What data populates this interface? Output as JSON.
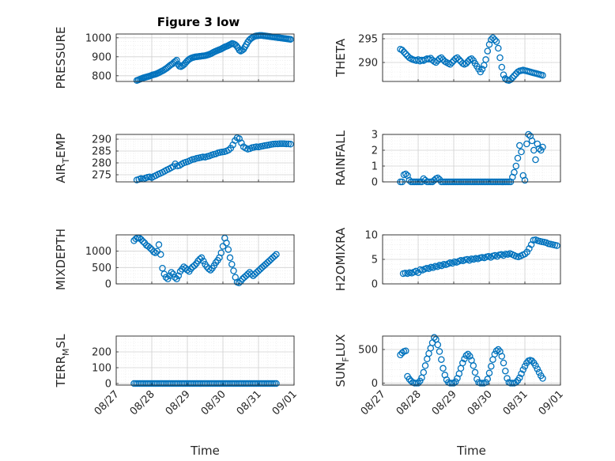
{
  "figure": {
    "title": "Figure 3 low",
    "xlabel": "Time",
    "x_ticks": [
      "08/27",
      "08/28",
      "08/29",
      "08/30",
      "08/31",
      "09/01"
    ],
    "marker_color": "#0072BD"
  },
  "chart_data": [
    {
      "type": "scatter",
      "ylabel": "PRESSURE",
      "ylim": [
        770,
        1020
      ],
      "yticks": [
        800,
        900,
        1000
      ],
      "x": [
        0.58,
        0.62,
        0.66,
        0.7,
        0.74,
        0.78,
        0.82,
        0.86,
        0.9,
        0.94,
        0.98,
        1.02,
        1.06,
        1.1,
        1.14,
        1.18,
        1.22,
        1.26,
        1.3,
        1.34,
        1.38,
        1.42,
        1.46,
        1.5,
        1.54,
        1.58,
        1.62,
        1.66,
        1.7,
        1.74,
        1.78,
        1.82,
        1.86,
        1.9,
        1.94,
        1.98,
        2.02,
        2.06,
        2.1,
        2.14,
        2.18,
        2.22,
        2.26,
        2.3,
        2.34,
        2.38,
        2.42,
        2.46,
        2.5,
        2.54,
        2.58,
        2.62,
        2.66,
        2.7,
        2.74,
        2.78,
        2.82,
        2.86,
        2.9,
        2.94,
        2.98,
        3.02,
        3.06,
        3.1,
        3.14,
        3.18,
        3.22,
        3.26,
        3.3,
        3.34,
        3.38,
        3.42,
        3.46,
        3.5,
        3.54,
        3.58,
        3.62,
        3.66,
        3.7,
        3.74,
        3.78,
        3.82,
        3.86,
        3.9,
        3.94,
        3.98,
        4.02,
        4.06,
        4.1,
        4.14,
        4.18,
        4.22,
        4.26,
        4.3,
        4.34,
        4.38,
        4.42,
        4.46,
        4.5,
        4.54,
        4.58,
        4.62,
        4.66,
        4.7,
        4.74,
        4.78,
        4.82,
        4.86,
        4.9
      ],
      "y": [
        775,
        778,
        781,
        784,
        787,
        790,
        792,
        794,
        796,
        798,
        801,
        804,
        806,
        808,
        811,
        814,
        818,
        822,
        826,
        830,
        835,
        840,
        846,
        852,
        858,
        862,
        870,
        876,
        882,
        860,
        850,
        848,
        852,
        858,
        866,
        874,
        882,
        888,
        892,
        895,
        897,
        899,
        900,
        901,
        902,
        903,
        904,
        905,
        906,
        908,
        910,
        913,
        916,
        920,
        924,
        928,
        931,
        934,
        937,
        940,
        944,
        948,
        952,
        955,
        958,
        962,
        966,
        970,
        968,
        964,
        958,
        948,
        935,
        930,
        934,
        940,
        952,
        965,
        978,
        988,
        995,
        1000,
        1005,
        1008,
        1010,
        1011,
        1012,
        1012,
        1012,
        1011,
        1010,
        1009,
        1008,
        1007,
        1006,
        1005,
        1004,
        1003,
        1002,
        1001,
        1000,
        999,
        998,
        997,
        996,
        995,
        994,
        993,
        992
      ]
    },
    {
      "type": "scatter",
      "ylabel": "THETA",
      "ylim": [
        286,
        296
      ],
      "yticks": [
        290,
        295
      ],
      "x": [
        0.5,
        0.55,
        0.6,
        0.65,
        0.7,
        0.75,
        0.8,
        0.85,
        0.9,
        0.95,
        1.0,
        1.05,
        1.1,
        1.15,
        1.2,
        1.25,
        1.3,
        1.35,
        1.4,
        1.45,
        1.5,
        1.55,
        1.6,
        1.65,
        1.7,
        1.75,
        1.8,
        1.85,
        1.9,
        1.95,
        2.0,
        2.05,
        2.1,
        2.15,
        2.2,
        2.25,
        2.3,
        2.35,
        2.4,
        2.45,
        2.5,
        2.55,
        2.6,
        2.65,
        2.7,
        2.75,
        2.8,
        2.85,
        2.9,
        2.95,
        3.0,
        3.05,
        3.1,
        3.15,
        3.2,
        3.25,
        3.3,
        3.35,
        3.4,
        3.45,
        3.5,
        3.55,
        3.6,
        3.65,
        3.7,
        3.75,
        3.8,
        3.85,
        3.9,
        3.95,
        4.0,
        4.05,
        4.1,
        4.15,
        4.2,
        4.25,
        4.3,
        4.35,
        4.4,
        4.45,
        4.5
      ],
      "y": [
        292.8,
        292.6,
        292.2,
        291.8,
        291.4,
        291.0,
        290.8,
        290.6,
        290.5,
        290.4,
        290.6,
        290.3,
        290.5,
        290.4,
        290.6,
        290.8,
        290.7,
        290.9,
        290.5,
        290.2,
        290.0,
        290.4,
        290.8,
        291.0,
        290.6,
        290.2,
        290.0,
        289.8,
        289.6,
        290.0,
        290.4,
        290.8,
        291.0,
        290.6,
        290.2,
        289.8,
        289.6,
        289.8,
        290.2,
        290.6,
        290.8,
        290.4,
        289.8,
        289.2,
        288.6,
        288.0,
        288.6,
        289.4,
        290.6,
        292.4,
        293.8,
        294.8,
        295.2,
        294.8,
        294.4,
        293.0,
        291.0,
        289.0,
        287.4,
        286.6,
        286.3,
        286.2,
        286.4,
        286.8,
        287.2,
        287.6,
        288.0,
        288.2,
        288.3,
        288.4,
        288.3,
        288.2,
        288.1,
        288.0,
        287.9,
        287.8,
        287.7,
        287.6,
        287.5,
        287.4,
        287.3
      ]
    },
    {
      "type": "scatter",
      "ylabel": "AIR_TEMP",
      "ylim": [
        272,
        292
      ],
      "yticks": [
        275,
        280,
        285,
        290
      ],
      "x": [
        0.58,
        0.64,
        0.7,
        0.76,
        0.82,
        0.88,
        0.94,
        1.0,
        1.06,
        1.12,
        1.18,
        1.24,
        1.3,
        1.36,
        1.42,
        1.48,
        1.54,
        1.6,
        1.66,
        1.72,
        1.78,
        1.84,
        1.9,
        1.96,
        2.02,
        2.08,
        2.14,
        2.2,
        2.26,
        2.32,
        2.38,
        2.44,
        2.5,
        2.56,
        2.62,
        2.68,
        2.74,
        2.8,
        2.86,
        2.92,
        2.98,
        3.04,
        3.1,
        3.16,
        3.22,
        3.28,
        3.34,
        3.4,
        3.46,
        3.52,
        3.58,
        3.64,
        3.7,
        3.76,
        3.82,
        3.88,
        3.94,
        4.0,
        4.06,
        4.12,
        4.18,
        4.24,
        4.3,
        4.36,
        4.42,
        4.48,
        4.54,
        4.6,
        4.66,
        4.72,
        4.78,
        4.84,
        4.9
      ],
      "y": [
        272.8,
        273.1,
        273.4,
        273.2,
        273.6,
        273.9,
        274.1,
        273.8,
        274.3,
        274.7,
        275.2,
        275.6,
        276.0,
        276.5,
        277.0,
        277.4,
        277.9,
        278.4,
        279.6,
        278.7,
        278.9,
        279.5,
        280.0,
        280.3,
        280.6,
        281.0,
        281.4,
        281.6,
        281.9,
        282.1,
        282.3,
        282.5,
        282.4,
        282.7,
        282.9,
        283.3,
        283.6,
        283.8,
        284.2,
        284.4,
        284.6,
        284.7,
        285.0,
        285.4,
        286.2,
        287.6,
        289.4,
        290.6,
        290.2,
        288.4,
        286.8,
        286.2,
        285.8,
        286.0,
        286.4,
        286.6,
        286.8,
        286.7,
        286.9,
        287.1,
        287.3,
        287.4,
        287.6,
        287.8,
        287.9,
        288.0,
        288.0,
        288.1,
        288.1,
        288.1,
        288.0,
        288.0,
        287.9
      ]
    },
    {
      "type": "scatter",
      "ylabel": "RAINFALL",
      "ylim": [
        0,
        3
      ],
      "yticks": [
        0,
        1,
        2,
        3
      ],
      "x": [
        0.5,
        0.55,
        0.6,
        0.65,
        0.7,
        0.75,
        0.8,
        0.85,
        0.9,
        0.95,
        1.0,
        1.05,
        1.1,
        1.15,
        1.2,
        1.25,
        1.3,
        1.35,
        1.4,
        1.45,
        1.5,
        1.55,
        1.6,
        1.65,
        1.7,
        1.75,
        1.8,
        1.85,
        1.9,
        1.95,
        2.0,
        2.05,
        2.1,
        2.15,
        2.2,
        2.25,
        2.3,
        2.35,
        2.4,
        2.45,
        2.5,
        2.55,
        2.6,
        2.65,
        2.7,
        2.75,
        2.8,
        2.85,
        2.9,
        2.95,
        3.0,
        3.05,
        3.1,
        3.15,
        3.2,
        3.25,
        3.3,
        3.35,
        3.4,
        3.45,
        3.5,
        3.55,
        3.6,
        3.65,
        3.7,
        3.75,
        3.8,
        3.85,
        3.9,
        3.95,
        4.0,
        4.05,
        4.1,
        4.15,
        4.2,
        4.25,
        4.3,
        4.35,
        4.4,
        4.45,
        4.5
      ],
      "y": [
        0,
        0,
        0.45,
        0.5,
        0.4,
        0.1,
        0,
        0,
        0,
        0,
        0,
        0,
        0,
        0.2,
        0.1,
        0,
        0,
        0,
        0,
        0.1,
        0.2,
        0.25,
        0.15,
        0,
        0,
        0,
        0,
        0,
        0,
        0,
        0,
        0,
        0,
        0,
        0,
        0,
        0,
        0,
        0,
        0,
        0,
        0,
        0,
        0,
        0,
        0,
        0,
        0,
        0,
        0,
        0,
        0,
        0,
        0,
        0,
        0,
        0,
        0,
        0,
        0,
        0,
        0,
        0,
        0.3,
        0.6,
        1.0,
        1.5,
        2.3,
        1.9,
        0.4,
        0.1,
        2.4,
        3.0,
        2.9,
        2.6,
        2.0,
        1.4,
        2.4,
        2.1,
        2.0,
        2.2
      ]
    },
    {
      "type": "scatter",
      "ylabel": "MIXDEPTH",
      "ylim": [
        0,
        1500
      ],
      "yticks": [
        0,
        500,
        1000
      ],
      "x": [
        0.5,
        0.55,
        0.6,
        0.65,
        0.7,
        0.75,
        0.8,
        0.85,
        0.9,
        0.95,
        1.0,
        1.05,
        1.1,
        1.15,
        1.2,
        1.25,
        1.3,
        1.35,
        1.4,
        1.45,
        1.5,
        1.55,
        1.6,
        1.65,
        1.7,
        1.75,
        1.8,
        1.85,
        1.9,
        1.95,
        2.0,
        2.05,
        2.1,
        2.15,
        2.2,
        2.25,
        2.3,
        2.35,
        2.4,
        2.45,
        2.5,
        2.55,
        2.6,
        2.65,
        2.7,
        2.75,
        2.8,
        2.85,
        2.9,
        2.95,
        3.0,
        3.05,
        3.1,
        3.15,
        3.2,
        3.25,
        3.3,
        3.35,
        3.4,
        3.45,
        3.5,
        3.55,
        3.6,
        3.65,
        3.7,
        3.75,
        3.8,
        3.85,
        3.9,
        3.95,
        4.0,
        4.05,
        4.1,
        4.15,
        4.2,
        4.25,
        4.3,
        4.35,
        4.4,
        4.45,
        4.5
      ],
      "y": [
        1320,
        1380,
        1410,
        1400,
        1360,
        1300,
        1250,
        1180,
        1150,
        1100,
        1050,
        980,
        950,
        1000,
        1200,
        900,
        480,
        300,
        200,
        150,
        250,
        350,
        300,
        200,
        150,
        250,
        380,
        450,
        520,
        480,
        420,
        380,
        460,
        520,
        560,
        620,
        700,
        760,
        800,
        700,
        600,
        520,
        460,
        420,
        480,
        560,
        650,
        720,
        800,
        950,
        1150,
        1400,
        1250,
        1050,
        800,
        600,
        400,
        200,
        50,
        30,
        80,
        150,
        200,
        250,
        300,
        350,
        300,
        250,
        300,
        350,
        400,
        450,
        500,
        550,
        600,
        650,
        700,
        750,
        800,
        850,
        900
      ]
    },
    {
      "type": "scatter",
      "ylabel": "H2OMIXRA",
      "ylim": [
        0,
        10
      ],
      "yticks": [
        0,
        5,
        10
      ],
      "x": [
        0.58,
        0.64,
        0.7,
        0.76,
        0.82,
        0.88,
        0.94,
        1.0,
        1.06,
        1.12,
        1.18,
        1.24,
        1.3,
        1.36,
        1.42,
        1.48,
        1.54,
        1.6,
        1.66,
        1.72,
        1.78,
        1.84,
        1.9,
        1.96,
        2.02,
        2.08,
        2.14,
        2.2,
        2.26,
        2.32,
        2.38,
        2.44,
        2.5,
        2.56,
        2.62,
        2.68,
        2.74,
        2.8,
        2.86,
        2.92,
        2.98,
        3.04,
        3.1,
        3.16,
        3.22,
        3.28,
        3.34,
        3.4,
        3.46,
        3.52,
        3.58,
        3.64,
        3.7,
        3.76,
        3.82,
        3.88,
        3.94,
        4.0,
        4.06,
        4.12,
        4.18,
        4.24,
        4.3,
        4.36,
        4.42,
        4.48,
        4.54,
        4.6,
        4.66,
        4.72,
        4.78,
        4.84,
        4.9
      ],
      "y": [
        2.1,
        2.2,
        2.1,
        2.3,
        2.2,
        2.4,
        2.6,
        2.3,
        2.9,
        2.8,
        3.0,
        3.2,
        3.1,
        3.4,
        3.3,
        3.6,
        3.5,
        3.8,
        3.7,
        4.0,
        3.9,
        4.1,
        4.3,
        4.2,
        4.5,
        4.4,
        4.6,
        4.8,
        4.7,
        4.9,
        5.0,
        4.8,
        5.1,
        5.0,
        5.2,
        5.1,
        5.3,
        5.4,
        5.3,
        5.5,
        5.6,
        5.4,
        5.7,
        5.8,
        5.6,
        5.9,
        6.0,
        5.8,
        6.1,
        6.0,
        6.2,
        6.0,
        5.8,
        5.6,
        5.5,
        5.7,
        5.9,
        6.1,
        6.5,
        7.2,
        8.0,
        8.9,
        9.0,
        8.8,
        8.7,
        8.6,
        8.5,
        8.4,
        8.2,
        8.1,
        8.0,
        7.9,
        7.8
      ]
    },
    {
      "type": "scatter",
      "ylabel": "TERR_MSL",
      "ylim": [
        -10,
        300
      ],
      "yticks": [
        0,
        100,
        200
      ],
      "x": [
        0.5,
        0.55,
        0.6,
        0.65,
        0.7,
        0.75,
        0.8,
        0.85,
        0.9,
        0.95,
        1.0,
        1.05,
        1.1,
        1.15,
        1.2,
        1.25,
        1.3,
        1.35,
        1.4,
        1.45,
        1.5,
        1.55,
        1.6,
        1.65,
        1.7,
        1.75,
        1.8,
        1.85,
        1.9,
        1.95,
        2.0,
        2.05,
        2.1,
        2.15,
        2.2,
        2.25,
        2.3,
        2.35,
        2.4,
        2.45,
        2.5,
        2.55,
        2.6,
        2.65,
        2.7,
        2.75,
        2.8,
        2.85,
        2.9,
        2.95,
        3.0,
        3.05,
        3.1,
        3.15,
        3.2,
        3.25,
        3.3,
        3.35,
        3.4,
        3.45,
        3.5,
        3.55,
        3.6,
        3.65,
        3.7,
        3.75,
        3.8,
        3.85,
        3.9,
        3.95,
        4.0,
        4.05,
        4.1,
        4.15,
        4.2,
        4.25,
        4.3,
        4.35,
        4.4,
        4.45,
        4.5
      ],
      "y": [
        0,
        0,
        0,
        0,
        0,
        0,
        0,
        0,
        0,
        0,
        0,
        0,
        0,
        0,
        0,
        0,
        0,
        0,
        0,
        0,
        0,
        0,
        0,
        0,
        0,
        0,
        0,
        0,
        0,
        0,
        0,
        0,
        0,
        0,
        0,
        0,
        0,
        0,
        0,
        0,
        0,
        0,
        0,
        0,
        0,
        0,
        0,
        0,
        0,
        0,
        0,
        0,
        0,
        0,
        0,
        0,
        0,
        0,
        0,
        0,
        0,
        0,
        0,
        0,
        0,
        0,
        0,
        0,
        0,
        0,
        0,
        0,
        0,
        0,
        0,
        0,
        0,
        0,
        0,
        0,
        0
      ]
    },
    {
      "type": "scatter",
      "ylabel": "SUN_FLUX",
      "ylim": [
        -30,
        700
      ],
      "yticks": [
        0,
        500
      ],
      "x": [
        0.5,
        0.55,
        0.6,
        0.65,
        0.7,
        0.75,
        0.8,
        0.85,
        0.9,
        0.95,
        1.0,
        1.05,
        1.1,
        1.15,
        1.2,
        1.25,
        1.3,
        1.35,
        1.4,
        1.45,
        1.5,
        1.55,
        1.6,
        1.65,
        1.7,
        1.75,
        1.8,
        1.85,
        1.9,
        1.95,
        2.0,
        2.05,
        2.1,
        2.15,
        2.2,
        2.25,
        2.3,
        2.35,
        2.4,
        2.45,
        2.5,
        2.55,
        2.6,
        2.65,
        2.7,
        2.75,
        2.8,
        2.85,
        2.9,
        2.95,
        3.0,
        3.05,
        3.1,
        3.15,
        3.2,
        3.25,
        3.3,
        3.35,
        3.4,
        3.45,
        3.5,
        3.55,
        3.6,
        3.65,
        3.7,
        3.75,
        3.8,
        3.85,
        3.9,
        3.95,
        4.0,
        4.05,
        4.1,
        4.15,
        4.2,
        4.25,
        4.3,
        4.35,
        4.4,
        4.45,
        4.5
      ],
      "y": [
        420,
        450,
        470,
        480,
        100,
        60,
        30,
        10,
        0,
        0,
        0,
        30,
        80,
        160,
        260,
        360,
        440,
        520,
        600,
        680,
        650,
        570,
        470,
        350,
        220,
        120,
        50,
        10,
        0,
        0,
        0,
        20,
        70,
        140,
        220,
        300,
        360,
        410,
        430,
        400,
        340,
        260,
        160,
        60,
        10,
        0,
        0,
        0,
        10,
        60,
        150,
        250,
        350,
        430,
        480,
        500,
        470,
        400,
        300,
        180,
        70,
        10,
        0,
        0,
        0,
        10,
        40,
        80,
        140,
        200,
        250,
        300,
        330,
        340,
        330,
        300,
        260,
        210,
        160,
        110,
        70
      ]
    }
  ]
}
